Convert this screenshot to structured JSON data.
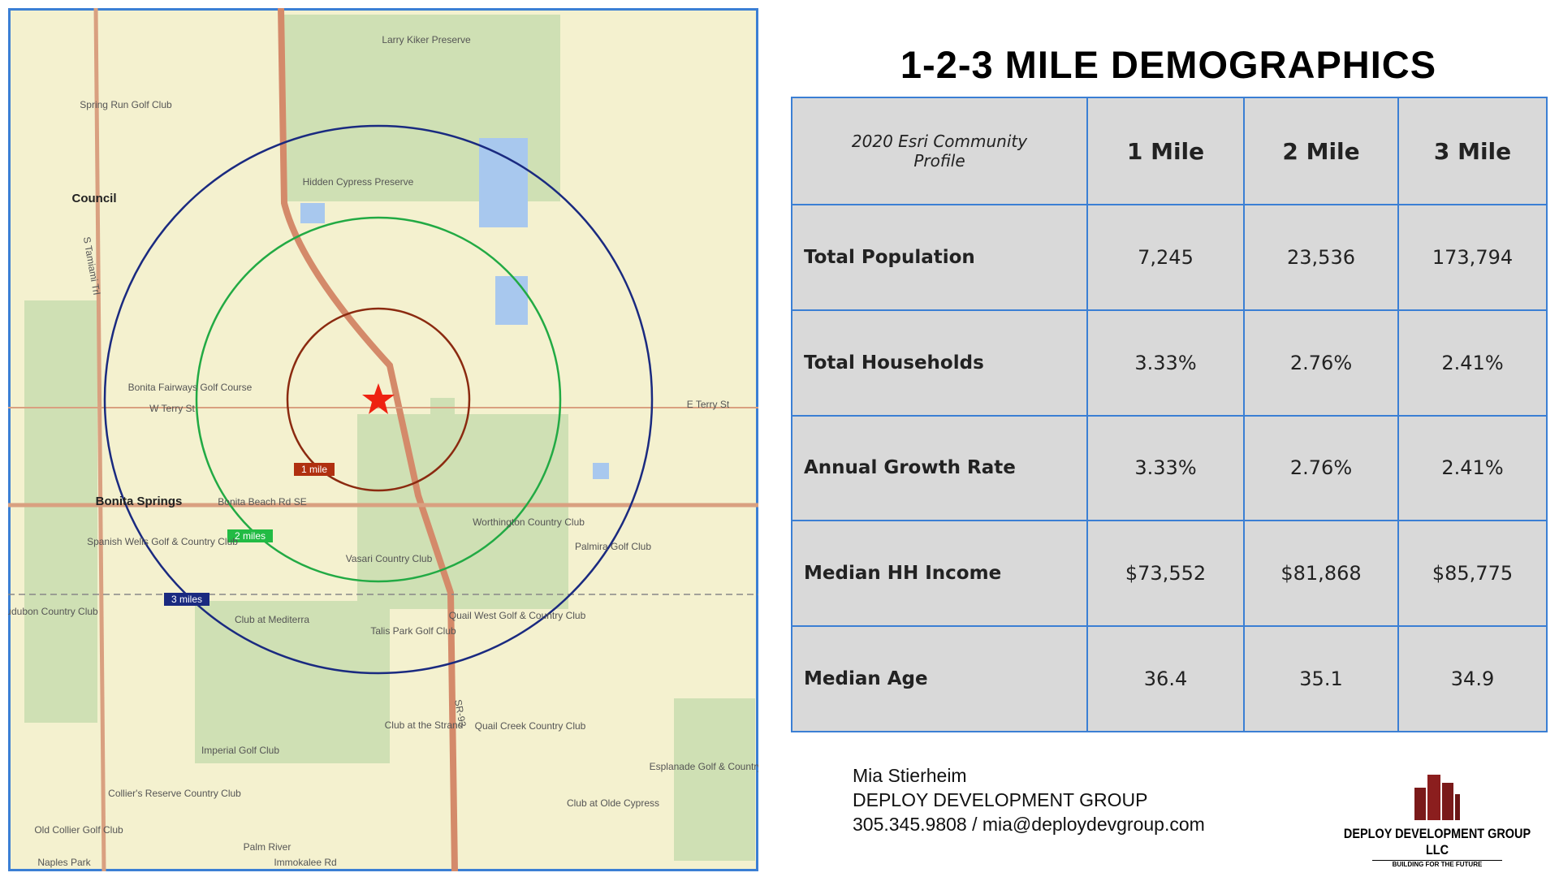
{
  "header": {
    "title": "1-2-3 MILE DEMOGRAPHICS"
  },
  "table": {
    "header": [
      "2020 Esri Community Profile",
      "1 Mile",
      "2 Mile",
      "3 Mile"
    ],
    "rows": [
      [
        "Total Population",
        "7,245",
        "23,536",
        "173,794"
      ],
      [
        "Total Households",
        "3.33%",
        "2.76%",
        "2.41%"
      ],
      [
        "Annual Growth Rate",
        "3.33%",
        "2.76%",
        "2.41%"
      ],
      [
        "Median HH Income",
        "$73,552",
        "$81,868",
        "$85,775"
      ],
      [
        "Median Age",
        "36.4",
        "35.1",
        "34.9"
      ]
    ]
  },
  "contact": {
    "name": "Mia Stierheim",
    "company": "DEPLOY DEVELOPMENT GROUP",
    "details": "305.345.9808 / mia@deploydevgroup.com"
  },
  "logo": {
    "name": "DEPLOY DEVELOPMENT GROUP LLC",
    "tagline": "BUILDING FOR THE FUTURE"
  },
  "map": {
    "rings": [
      "1 mile",
      "2 miles",
      "3 miles"
    ],
    "labels": [
      "Larry Kiker Preserve",
      "Hidden Cypress Preserve",
      "Council",
      "Bonita Fairways Golf Course",
      "Bonita Springs",
      "Bonita Beach Rd SE",
      "Worthington Country Club",
      "Vasari Country Club",
      "Spanish Wells Golf & Country Club",
      "Club at Mediterra",
      "Talis Park Golf Club",
      "Quail West Golf & Country Club",
      "Palmira Golf Club",
      "Imperial Golf Club",
      "Quail Creek Country Club",
      "Club at the Strand",
      "Esplanade Golf & Country Club",
      "Club at Olde Cypress",
      "Collier's Reserve Country Club",
      "Old Collier Golf Club",
      "Palm River",
      "Naples Park",
      "Immokalee Rd",
      "SR-93",
      "S Tamiami Trl",
      "E Terry St",
      "W Terry St",
      "Spring Run Golf Club",
      "Audubon Country Club"
    ]
  }
}
